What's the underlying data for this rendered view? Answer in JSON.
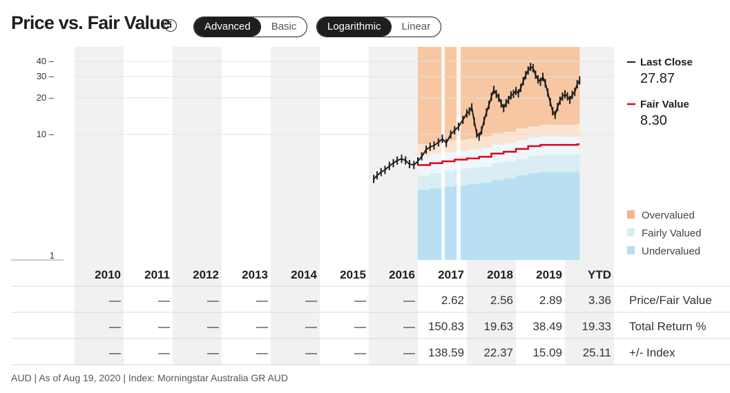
{
  "header": {
    "title": "Price vs. Fair Value",
    "info_icon": "info-icon",
    "view_toggle": [
      "Advanced",
      "Basic"
    ],
    "view_selected": "Advanced",
    "scale_toggle": [
      "Logarithmic",
      "Linear"
    ],
    "scale_selected": "Logarithmic"
  },
  "legend": {
    "last_close_label": "Last Close",
    "last_close_value": "27.87",
    "fair_value_label": "Fair Value",
    "fair_value_value": "8.30",
    "bands": [
      "Overvalued",
      "Fairly Valued",
      "Undervalued"
    ]
  },
  "colors": {
    "price": "#1e1e1e",
    "fair_value": "#e2001a",
    "overvalued": "#f5b58c",
    "fairly_valued": "#daedf5",
    "undervalued": "#b8e0f2",
    "column_shade": "#f1f1f1"
  },
  "chart_data": {
    "type": "line",
    "scale": "logarithmic",
    "y_ticks": [
      "40",
      "30",
      "20",
      "10",
      "1"
    ],
    "y_tick_values": [
      40,
      30,
      20,
      10,
      1
    ],
    "ylim": [
      1,
      48
    ],
    "years": [
      "2010",
      "2011",
      "2012",
      "2013",
      "2014",
      "2015",
      "2016",
      "2017",
      "2018",
      "2019",
      "YTD"
    ],
    "x_range": [
      2010,
      2020.7
    ],
    "series": [
      {
        "name": "Last Close",
        "points": [
          [
            2016.1,
            4.3
          ],
          [
            2016.17,
            4.6
          ],
          [
            2016.25,
            4.9
          ],
          [
            2016.33,
            5.1
          ],
          [
            2016.42,
            5.5
          ],
          [
            2016.5,
            5.8
          ],
          [
            2016.58,
            6.1
          ],
          [
            2016.67,
            6.3
          ],
          [
            2016.75,
            6.1
          ],
          [
            2016.83,
            5.7
          ],
          [
            2016.92,
            5.6
          ],
          [
            2017.0,
            6.0
          ],
          [
            2017.08,
            6.6
          ],
          [
            2017.17,
            7.5
          ],
          [
            2017.25,
            7.9
          ],
          [
            2017.33,
            8.1
          ],
          [
            2017.42,
            8.6
          ],
          [
            2017.5,
            9.2
          ],
          [
            2017.58,
            8.5
          ],
          [
            2017.67,
            10.0
          ],
          [
            2017.75,
            10.8
          ],
          [
            2017.83,
            11.6
          ],
          [
            2017.92,
            13.2
          ],
          [
            2018.0,
            14.9
          ],
          [
            2018.05,
            15.5
          ],
          [
            2018.1,
            16.7
          ],
          [
            2018.15,
            12.8
          ],
          [
            2018.2,
            10.2
          ],
          [
            2018.25,
            9.6
          ],
          [
            2018.3,
            10.8
          ],
          [
            2018.35,
            12.9
          ],
          [
            2018.4,
            15.2
          ],
          [
            2018.45,
            17.5
          ],
          [
            2018.5,
            20.4
          ],
          [
            2018.55,
            23.3
          ],
          [
            2018.6,
            21.5
          ],
          [
            2018.65,
            20.1
          ],
          [
            2018.7,
            18.0
          ],
          [
            2018.75,
            16.5
          ],
          [
            2018.8,
            18.1
          ],
          [
            2018.85,
            19.2
          ],
          [
            2018.9,
            21.0
          ],
          [
            2018.95,
            21.6
          ],
          [
            2019.0,
            22.8
          ],
          [
            2019.05,
            21.8
          ],
          [
            2019.1,
            24.2
          ],
          [
            2019.15,
            27.5
          ],
          [
            2019.2,
            30.8
          ],
          [
            2019.25,
            33.7
          ],
          [
            2019.3,
            36.0
          ],
          [
            2019.35,
            35.2
          ],
          [
            2019.4,
            31.1
          ],
          [
            2019.45,
            28.4
          ],
          [
            2019.5,
            27.2
          ],
          [
            2019.55,
            29.8
          ],
          [
            2019.6,
            26.4
          ],
          [
            2019.65,
            22.1
          ],
          [
            2019.7,
            18.5
          ],
          [
            2019.75,
            15.5
          ],
          [
            2019.8,
            14.5
          ],
          [
            2019.85,
            16.8
          ],
          [
            2019.9,
            19.0
          ],
          [
            2019.95,
            20.5
          ],
          [
            2020.0,
            21.4
          ],
          [
            2020.05,
            20.6
          ],
          [
            2020.1,
            19.3
          ],
          [
            2020.15,
            21.2
          ],
          [
            2020.2,
            22.4
          ],
          [
            2020.25,
            26.0
          ],
          [
            2020.3,
            27.87
          ]
        ]
      },
      {
        "name": "Fair Value",
        "points": [
          [
            2017.0,
            5.6
          ],
          [
            2017.25,
            5.8
          ],
          [
            2017.5,
            6.0
          ],
          [
            2017.75,
            6.2
          ],
          [
            2018.0,
            6.35
          ],
          [
            2018.25,
            6.55
          ],
          [
            2018.5,
            6.95
          ],
          [
            2018.75,
            7.2
          ],
          [
            2019.0,
            7.6
          ],
          [
            2019.25,
            8.0
          ],
          [
            2019.5,
            8.2
          ],
          [
            2019.75,
            8.2
          ],
          [
            2020.0,
            8.2
          ],
          [
            2020.25,
            8.3
          ],
          [
            2020.3,
            8.3
          ]
        ]
      }
    ],
    "bands_data": {
      "x": [
        2017.0,
        2017.25,
        2017.5,
        2017.75,
        2018.0,
        2018.25,
        2018.5,
        2018.75,
        2019.0,
        2019.25,
        2019.5,
        2019.75,
        2020.0,
        2020.25,
        2020.3
      ],
      "undervalued_top": [
        3.5,
        3.6,
        3.7,
        3.8,
        3.9,
        4.0,
        4.2,
        4.35,
        4.6,
        4.8,
        4.9,
        4.9,
        4.9,
        5.0,
        5.0
      ],
      "fairly_low_top": [
        4.6,
        4.8,
        5.0,
        5.2,
        5.3,
        5.4,
        5.8,
        6.0,
        6.3,
        6.7,
        6.8,
        6.8,
        6.8,
        6.9,
        6.9
      ],
      "fair_top": [
        6.6,
        6.9,
        7.1,
        7.3,
        7.5,
        7.7,
        8.2,
        8.5,
        8.9,
        9.4,
        9.6,
        9.6,
        9.6,
        9.7,
        9.7
      ],
      "overvalued_low_top": [
        8.3,
        8.5,
        8.8,
        9.0,
        9.2,
        9.6,
        10.2,
        10.5,
        11.2,
        11.6,
        12.0,
        12.0,
        12.0,
        12.2,
        12.2
      ]
    }
  },
  "table": {
    "years": [
      "2010",
      "2011",
      "2012",
      "2013",
      "2014",
      "2015",
      "2016",
      "2017",
      "2018",
      "2019",
      "YTD"
    ],
    "rows": [
      {
        "label": "Price/Fair Value",
        "values": [
          "—",
          "—",
          "—",
          "—",
          "—",
          "—",
          "—",
          "2.62",
          "2.56",
          "2.89",
          "3.36"
        ]
      },
      {
        "label": "Total Return %",
        "values": [
          "—",
          "—",
          "—",
          "—",
          "—",
          "—",
          "—",
          "150.83",
          "19.63",
          "38.49",
          "19.33"
        ]
      },
      {
        "label": "+/- Index",
        "values": [
          "—",
          "—",
          "—",
          "—",
          "—",
          "—",
          "—",
          "138.59",
          "22.37",
          "15.09",
          "25.11"
        ]
      }
    ]
  },
  "footer": {
    "text": "AUD | As of Aug 19, 2020 | Index: Morningstar Australia GR AUD"
  }
}
